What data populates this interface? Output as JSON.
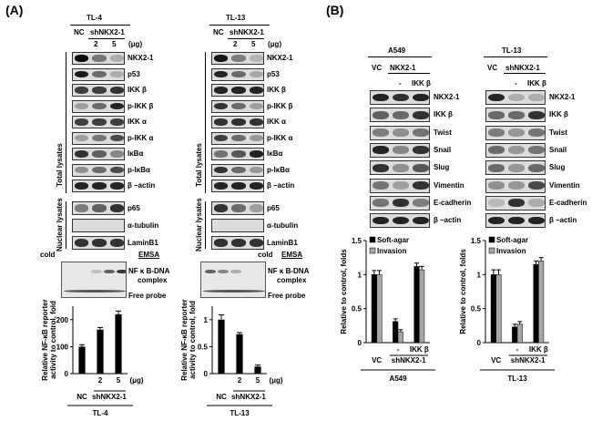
{
  "panel_a": {
    "label": "(A)",
    "tl4": {
      "title": "TL-4",
      "header_nc": "NC",
      "header_sh": "shNKX2-1",
      "doses": [
        "2",
        "5"
      ],
      "unit": "(μg)",
      "total_bands": [
        "NKX2-1",
        "p53",
        "IKK β",
        "p-IKK β",
        "IKK α",
        "p-IKK α",
        "IκBα",
        "p-IκBα",
        "β –actin"
      ],
      "nuclear_bands": [
        "p65",
        "α-tubulin",
        "LaminB1"
      ],
      "cold": "cold",
      "emsa": "EMSA",
      "complex_1": "NF κ B-DNA",
      "complex_2": "complex",
      "free_probe": "Free probe"
    },
    "tl13": {
      "title": "TL-13",
      "header_nc": "NC",
      "header_sh": "shNKX2-1",
      "doses": [
        "2",
        "5"
      ],
      "unit": "(μg)",
      "total_bands": [
        "NKX2-1",
        "p53",
        "IKK β",
        "p-IKK β",
        "IKK α",
        "p-IKK α",
        "IκBα",
        "p-IκBα",
        "β –actin"
      ],
      "nuclear_bands": [
        "p65",
        "α-tubulin",
        "LaminB1"
      ],
      "cold": "cold",
      "emsa": "EMSA",
      "complex_1": "NF κ B-DNA",
      "complex_2": "complex",
      "free_probe": "Free probe"
    },
    "total_lysates": "Total lysates",
    "nuclear_lysates": "Nuclear lysates"
  },
  "panel_b": {
    "label": "(B)",
    "a549": {
      "title": "A549",
      "header_vc": "VC",
      "header_nkx": "NKX2-1",
      "minus": "-",
      "ikk": "IKK β",
      "bands": [
        "NKX2-1",
        "IKK β",
        "Twist",
        "Snail",
        "Slug",
        "Vimentin",
        "E-cadherin",
        "β –actin"
      ]
    },
    "tl13": {
      "title": "TL-13",
      "header_vc": "VC",
      "header_sh": "shNKX2-1",
      "minus": "-",
      "ikk": "IKK β",
      "bands": [
        "NKX2-1",
        "IKK β",
        "Twist",
        "Snail",
        "Slug",
        "Vimentin",
        "E-cadherin",
        "β –actin"
      ]
    }
  },
  "chart_data": [
    {
      "type": "bar",
      "panel": "A-TL-4",
      "ylabel_1": "Relative NF-κB reporter",
      "ylabel_2": "activity to control, fold",
      "categories": [
        "NC",
        "2",
        "5"
      ],
      "values": [
        100,
        163,
        220
      ],
      "errors": [
        7,
        8,
        12
      ],
      "ylim": [
        0,
        250
      ],
      "yticks": [
        "0",
        "100",
        "200"
      ],
      "unit": "(μg)",
      "xgroup_nc": "NC",
      "xgroup_sh": "shNKX2-1",
      "cell_line": "TL-4"
    },
    {
      "type": "bar",
      "panel": "A-TL-13",
      "ylabel_1": "Relative NF-κB reporter",
      "ylabel_2": "activity to control, fold",
      "categories": [
        "NC",
        "2",
        "5"
      ],
      "values": [
        1.0,
        0.73,
        0.13
      ],
      "errors": [
        0.09,
        0.03,
        0.03
      ],
      "ylim": [
        0,
        1.25
      ],
      "yticks": [
        "0",
        "0.5",
        "1"
      ],
      "unit": "(μg)",
      "xgroup_nc": "NC",
      "xgroup_sh": "shNKX2-1",
      "cell_line": "TL-13"
    },
    {
      "type": "bar",
      "panel": "B-A549",
      "ylabel": "Relative to control, folds",
      "categories": [
        "VC",
        "-",
        "IKK β"
      ],
      "series": [
        {
          "name": "Soft-agar",
          "values": [
            1.0,
            0.31,
            1.12
          ],
          "errors": [
            0.06,
            0.04,
            0.05
          ],
          "color": "#000000"
        },
        {
          "name": "Invasion",
          "values": [
            1.0,
            0.16,
            1.07
          ],
          "errors": [
            0.06,
            0.03,
            0.05
          ],
          "color": "#a6a6a6"
        }
      ],
      "ylim": [
        0,
        1.5
      ],
      "yticks": [
        "0",
        "0.5",
        "1",
        "1.5"
      ],
      "xgroup_vc": "VC",
      "xgroup_sh": "shNKX2-1",
      "cell_line": "A549"
    },
    {
      "type": "bar",
      "panel": "B-TL-13",
      "ylabel": "Relative to control, folds",
      "categories": [
        "VC",
        "-",
        "IKK β"
      ],
      "series": [
        {
          "name": "Soft-agar",
          "values": [
            1.0,
            0.23,
            1.15
          ],
          "errors": [
            0.07,
            0.04,
            0.05
          ],
          "color": "#000000"
        },
        {
          "name": "Invasion",
          "values": [
            1.0,
            0.27,
            1.2
          ],
          "errors": [
            0.07,
            0.04,
            0.05
          ],
          "color": "#a6a6a6"
        }
      ],
      "ylim": [
        0,
        1.5
      ],
      "yticks": [
        "0",
        "0.5",
        "1",
        "1.5"
      ],
      "xgroup_vc": "VC",
      "xgroup_sh": "shNKX2-1",
      "cell_line": "TL-13"
    }
  ]
}
